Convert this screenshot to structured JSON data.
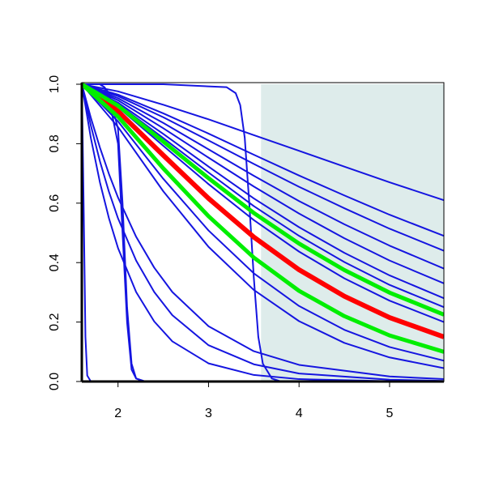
{
  "chart_data": {
    "type": "line",
    "xlim": [
      1.6,
      5.6
    ],
    "ylim": [
      0,
      1
    ],
    "xticks": [
      2,
      3,
      4,
      5
    ],
    "yticks": [
      {
        "value": 0,
        "label": "0.0"
      },
      {
        "value": 0.2,
        "label": "0.2"
      },
      {
        "value": 0.4,
        "label": "0.4"
      },
      {
        "value": 0.6,
        "label": "0.6"
      },
      {
        "value": 0.8,
        "label": "0.8"
      },
      {
        "value": 1,
        "label": "1.0"
      }
    ],
    "shaded_region": {
      "xlim": [
        3.58,
        5.6
      ],
      "color": "#deeceb"
    },
    "series": [
      {
        "color": "#1515e0",
        "line_width": 2,
        "x": [
          1.6,
          2.0,
          2.5,
          3.0,
          3.5,
          4.0,
          4.5,
          5.0,
          5.6
        ],
        "values": [
          1,
          0.976,
          0.931,
          0.882,
          0.829,
          0.776,
          0.723,
          0.67,
          0.61
        ]
      },
      {
        "color": "#1515e0",
        "line_width": 2,
        "x": [
          1.6,
          2.0,
          2.5,
          3.0,
          3.5,
          4.0,
          4.5,
          5.0,
          5.6
        ],
        "values": [
          1,
          0.965,
          0.902,
          0.834,
          0.763,
          0.693,
          0.626,
          0.561,
          0.49
        ]
      },
      {
        "color": "#1515e0",
        "line_width": 2,
        "x": [
          1.6,
          2.0,
          2.5,
          3.0,
          3.5,
          4.0,
          4.5,
          5.0,
          5.6
        ],
        "values": [
          1,
          0.96,
          0.889,
          0.811,
          0.732,
          0.655,
          0.583,
          0.514,
          0.44
        ]
      },
      {
        "color": "#1515e0",
        "line_width": 2,
        "x": [
          1.6,
          2.0,
          2.5,
          3.0,
          3.5,
          4.0,
          4.5,
          5.0,
          5.6
        ],
        "values": [
          1,
          0.953,
          0.87,
          0.781,
          0.692,
          0.607,
          0.529,
          0.457,
          0.38
        ]
      },
      {
        "color": "#1515e0",
        "line_width": 2,
        "x": [
          1.6,
          2.0,
          2.5,
          3.0,
          3.5,
          4.0,
          4.5,
          5.0,
          5.6
        ],
        "values": [
          1,
          0.946,
          0.852,
          0.753,
          0.656,
          0.565,
          0.482,
          0.407,
          0.33
        ]
      },
      {
        "color": "#1515e0",
        "line_width": 2,
        "x": [
          1.6,
          2.0,
          2.5,
          3.0,
          3.5,
          4.0,
          4.5,
          5.0,
          5.6
        ],
        "values": [
          1,
          0.938,
          0.833,
          0.723,
          0.616,
          0.519,
          0.433,
          0.357,
          0.28
        ]
      },
      {
        "color": "#1515e0",
        "line_width": 2,
        "x": [
          1.6,
          2.0,
          2.5,
          3.0,
          3.5,
          4.0,
          4.5,
          5.0,
          5.6
        ],
        "values": [
          1,
          0.933,
          0.819,
          0.703,
          0.59,
          0.49,
          0.402,
          0.325,
          0.25
        ]
      },
      {
        "color": "#1515e0",
        "line_width": 2,
        "x": [
          1.6,
          2.0,
          2.5,
          3.0,
          3.5,
          4.0,
          4.5,
          5.0,
          5.6
        ],
        "values": [
          1,
          0.923,
          0.793,
          0.664,
          0.543,
          0.437,
          0.347,
          0.272,
          0.2
        ]
      },
      {
        "color": "#1515e0",
        "line_width": 2,
        "x": [
          1.6,
          2.0,
          2.5,
          3.0,
          3.5,
          4.0,
          4.5,
          5.0,
          5.6
        ],
        "values": [
          1,
          0.875,
          0.682,
          0.508,
          0.364,
          0.254,
          0.174,
          0.116,
          0.07
        ]
      },
      {
        "color": "#1515e0",
        "line_width": 2,
        "x": [
          1.6,
          2.0,
          2.5,
          3.0,
          3.5,
          4.0,
          4.5,
          5.0,
          5.6
        ],
        "values": [
          1,
          0.856,
          0.64,
          0.453,
          0.308,
          0.203,
          0.13,
          0.081,
          0.045
        ]
      },
      {
        "color": "#1515e0",
        "line_width": 2,
        "x": [
          1.6,
          1.7,
          1.8,
          1.9,
          2.0,
          2.2,
          2.4,
          2.6,
          3.0,
          3.5,
          4.0,
          5.0,
          5.6
        ],
        "values": [
          1,
          0.819,
          0.67,
          0.549,
          0.449,
          0.301,
          0.202,
          0.135,
          0.061,
          0.022,
          0.008,
          0.001,
          0
        ]
      },
      {
        "color": "#1515e0",
        "line_width": 2,
        "x": [
          1.6,
          1.7,
          1.8,
          1.9,
          2.0,
          2.2,
          2.4,
          2.6,
          3.0,
          3.5,
          4.0,
          5.0,
          5.6
        ],
        "values": [
          1,
          0.861,
          0.741,
          0.638,
          0.549,
          0.407,
          0.301,
          0.223,
          0.122,
          0.058,
          0.027,
          0.006,
          0.002
        ]
      },
      {
        "color": "#1515e0",
        "line_width": 2,
        "x": [
          1.6,
          1.7,
          1.8,
          1.9,
          2.0,
          2.2,
          2.4,
          2.6,
          3.0,
          3.5,
          4.0,
          5.0,
          5.6
        ],
        "values": [
          1,
          0.887,
          0.787,
          0.698,
          0.619,
          0.487,
          0.383,
          0.301,
          0.186,
          0.102,
          0.056,
          0.017,
          0.008
        ]
      },
      {
        "color": "#1515e0",
        "line_width": 2,
        "x": [
          1.6,
          1.62,
          1.64,
          1.66,
          1.7,
          5.6
        ],
        "values": [
          1,
          0.6,
          0.15,
          0.02,
          0,
          0
        ]
      },
      {
        "color": "#1515e0",
        "line_width": 2,
        "x": [
          1.6,
          1.8,
          1.85,
          1.9,
          2.0,
          2.05,
          2.1,
          2.15,
          2.2,
          2.3,
          5.6
        ],
        "values": [
          1,
          1,
          0.99,
          0.97,
          0.85,
          0.6,
          0.25,
          0.06,
          0.01,
          0,
          0
        ]
      },
      {
        "color": "#1515e0",
        "line_width": 2,
        "x": [
          1.6,
          1.8,
          1.85,
          1.9,
          2.0,
          2.05,
          2.1,
          2.15,
          2.2,
          2.3,
          5.6
        ],
        "values": [
          1,
          1,
          0.99,
          0.95,
          0.8,
          0.5,
          0.2,
          0.04,
          0.01,
          0,
          0
        ]
      },
      {
        "color": "#1515e0",
        "line_width": 2,
        "x": [
          1.6,
          2.5,
          3.2,
          3.3,
          3.35,
          3.4,
          3.45,
          3.5,
          3.55,
          3.6,
          3.7,
          3.8,
          5.6
        ],
        "values": [
          1,
          1,
          0.99,
          0.97,
          0.93,
          0.82,
          0.6,
          0.35,
          0.15,
          0.06,
          0.01,
          0,
          0
        ]
      },
      {
        "color": "#ff0000",
        "line_width": 6,
        "x": [
          1.6,
          2.0,
          2.5,
          3.0,
          3.5,
          4.0,
          4.5,
          5.0,
          5.6
        ],
        "values": [
          1,
          0.909,
          0.761,
          0.616,
          0.486,
          0.376,
          0.287,
          0.215,
          0.15
        ]
      },
      {
        "color": "#00ee00",
        "line_width": 5,
        "x": [
          1.6,
          2.0,
          2.5,
          3.0,
          3.5,
          4.0,
          4.5,
          5.0,
          5.6
        ],
        "values": [
          1,
          0.928,
          0.807,
          0.684,
          0.567,
          0.464,
          0.375,
          0.299,
          0.225
        ]
      },
      {
        "color": "#00ee00",
        "line_width": 5,
        "x": [
          1.6,
          2.0,
          2.5,
          3.0,
          3.5,
          4.0,
          4.5,
          5.0,
          5.6
        ],
        "values": [
          1,
          0.891,
          0.717,
          0.556,
          0.417,
          0.305,
          0.22,
          0.155,
          0.1
        ]
      }
    ]
  }
}
